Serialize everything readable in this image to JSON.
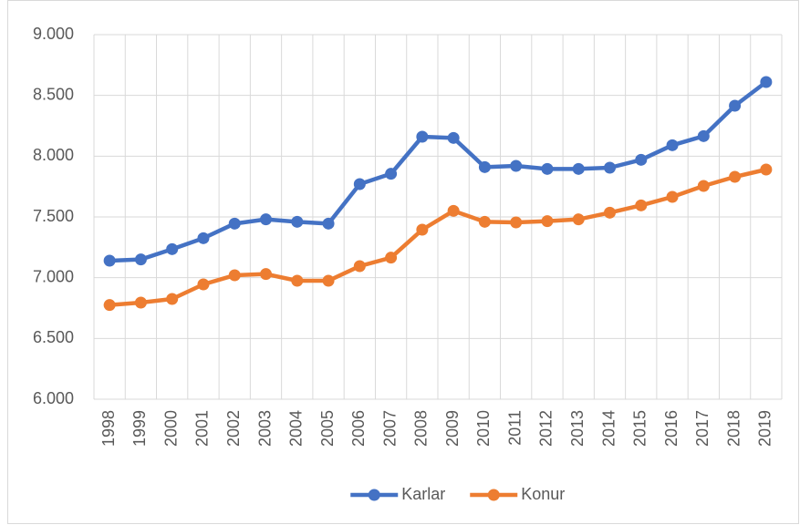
{
  "chart_data": {
    "type": "line",
    "categories": [
      "1998",
      "1999",
      "2000",
      "2001",
      "2002",
      "2003",
      "2004",
      "2005",
      "2006",
      "2007",
      "2008",
      "2009",
      "2010",
      "2011",
      "2012",
      "2013",
      "2014",
      "2015",
      "2016",
      "2017",
      "2018",
      "2019"
    ],
    "series": [
      {
        "name": "Karlar",
        "color": "#4472c4",
        "values": [
          7140,
          7150,
          7235,
          7325,
          7445,
          7480,
          7460,
          7445,
          7770,
          7855,
          8160,
          8150,
          7910,
          7920,
          7895,
          7895,
          7905,
          7970,
          8090,
          8165,
          8415,
          8610
        ]
      },
      {
        "name": "Konur",
        "color": "#ed7d31",
        "values": [
          6775,
          6795,
          6825,
          6945,
          7020,
          7030,
          6975,
          6975,
          7095,
          7165,
          7395,
          7550,
          7460,
          7455,
          7465,
          7480,
          7535,
          7595,
          7665,
          7755,
          7830,
          7890
        ]
      }
    ],
    "ylim": [
      6000,
      9000
    ],
    "yticks": [
      {
        "value": 6000,
        "label": "6.000"
      },
      {
        "value": 6500,
        "label": "6.500"
      },
      {
        "value": 7000,
        "label": "7.000"
      },
      {
        "value": 7500,
        "label": "7.500"
      },
      {
        "value": 8000,
        "label": "8.000"
      },
      {
        "value": 8500,
        "label": "8.500"
      },
      {
        "value": 9000,
        "label": "9.000"
      }
    ],
    "grid": true,
    "legend": "bottom"
  }
}
